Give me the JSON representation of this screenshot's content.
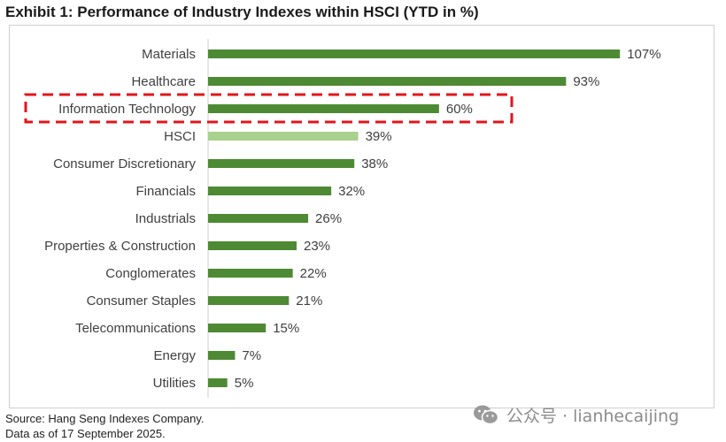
{
  "title": "Exhibit 1: Performance of Industry Indexes within HSCI (YTD in %)",
  "footnotes": {
    "source": "Source: Hang Seng Indexes Company.",
    "date": "Data as of 17 September 2025."
  },
  "watermark": {
    "icon": "wechat-icon",
    "text": "公众号 · lianhecaijing"
  },
  "colors": {
    "bar": "#4e8a34",
    "highlight_bar": "#a9d18e",
    "highlight_box": "#e0161b",
    "axis": "#cccccc",
    "label": "#404040"
  },
  "chart_data": {
    "type": "bar",
    "orientation": "horizontal",
    "categories": [
      "Materials",
      "Healthcare",
      "Information Technology",
      "HSCI",
      "Consumer Discretionary",
      "Financials",
      "Industrials",
      "Properties & Construction",
      "Conglomerates",
      "Consumer Staples",
      "Telecommunications",
      "Energy",
      "Utilities"
    ],
    "values": [
      107,
      93,
      60,
      39,
      38,
      32,
      26,
      23,
      22,
      21,
      15,
      7,
      5
    ],
    "value_labels": [
      "107%",
      "93%",
      "60%",
      "39%",
      "38%",
      "32%",
      "26%",
      "23%",
      "22%",
      "21%",
      "15%",
      "7%",
      "5%"
    ],
    "benchmark_category": "HSCI",
    "highlighted_category": "Information Technology",
    "xlim": [
      0,
      115
    ],
    "unit": "%",
    "grid": false,
    "legend": "none"
  }
}
